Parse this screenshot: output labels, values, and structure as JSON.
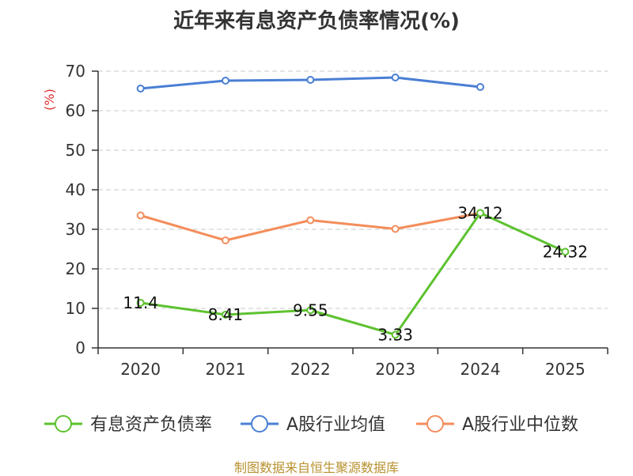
{
  "chart_data": {
    "type": "line",
    "title": "近年来有息资产负债率情况(%)",
    "ylabel": "(%)",
    "xlabel": "",
    "categories": [
      "2020",
      "2021",
      "2022",
      "2023",
      "2024",
      "2025"
    ],
    "ylim": [
      0,
      70
    ],
    "yticks": [
      0,
      10,
      20,
      30,
      40,
      50,
      60,
      70
    ],
    "grid": true,
    "legend_position": "bottom",
    "series": [
      {
        "name": "有息资产负债率",
        "color": "#5dc22f",
        "values": [
          11.4,
          8.41,
          9.55,
          3.33,
          34.12,
          24.32
        ],
        "labels": [
          "11.4",
          "8.41",
          "9.55",
          "3.33",
          "34.12",
          "24.32"
        ]
      },
      {
        "name": "A股行业均值",
        "color": "#4a7fd4",
        "values": [
          65.6,
          67.6,
          67.8,
          68.4,
          66.0,
          null
        ]
      },
      {
        "name": "A股行业中位数",
        "color": "#f48d5b",
        "values": [
          33.5,
          27.2,
          32.3,
          30.1,
          34.1,
          null
        ]
      }
    ]
  },
  "source": "制图数据来自恒生聚源数据库"
}
